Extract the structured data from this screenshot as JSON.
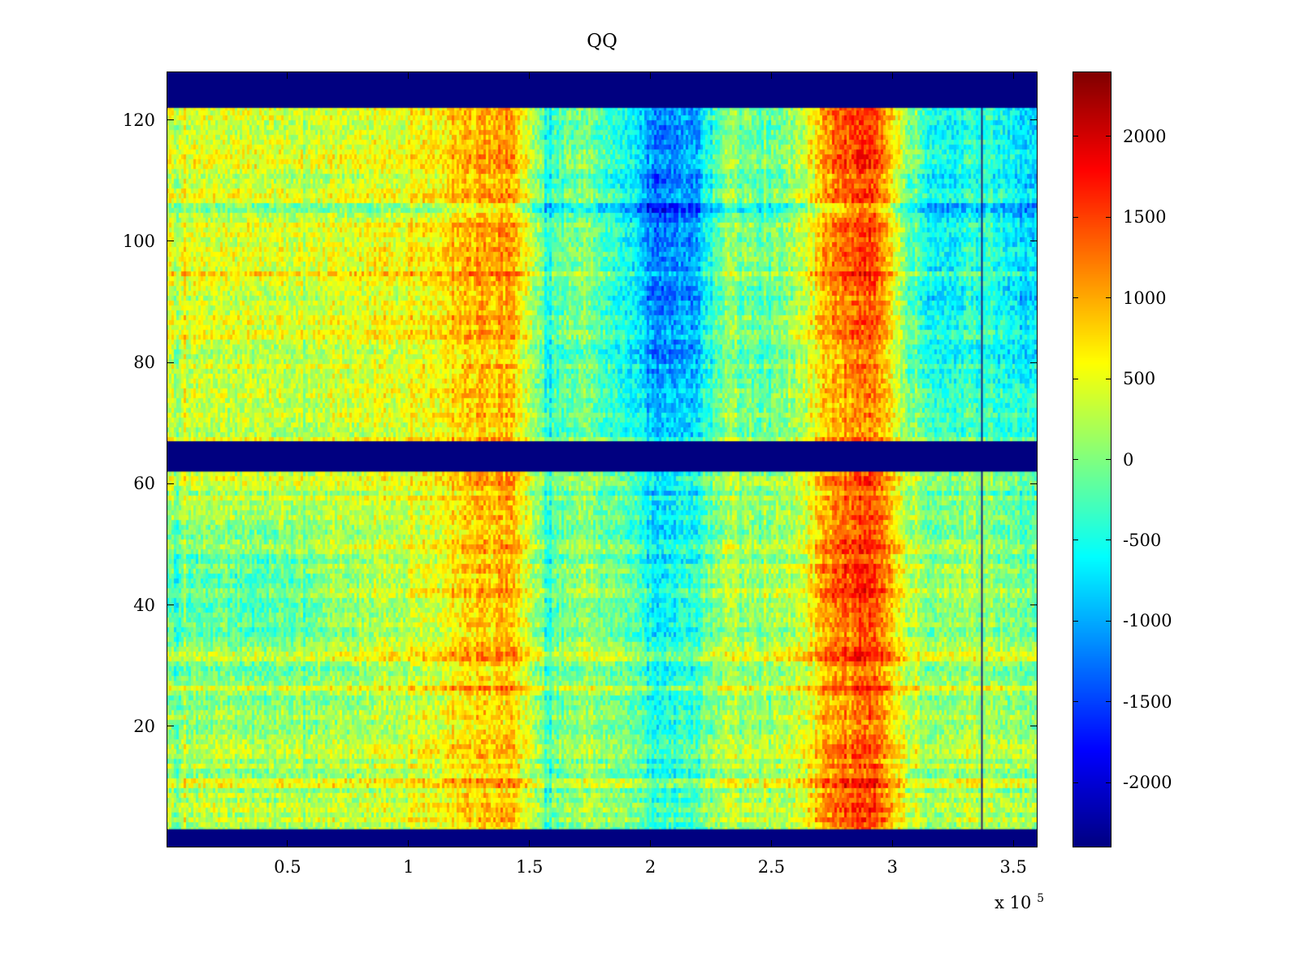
{
  "chart_data": {
    "type": "heatmap",
    "title": "QQ",
    "colormap": "jet",
    "x_range": [
      0,
      360000
    ],
    "y_range": [
      0,
      128
    ],
    "clim": [
      -2400,
      2400
    ],
    "x_ticks": [
      {
        "value": 50000,
        "label": "0.5"
      },
      {
        "value": 100000,
        "label": "1"
      },
      {
        "value": 150000,
        "label": "1.5"
      },
      {
        "value": 200000,
        "label": "2"
      },
      {
        "value": 250000,
        "label": "2.5"
      },
      {
        "value": 300000,
        "label": "3"
      },
      {
        "value": 350000,
        "label": "3.5"
      }
    ],
    "x_offset_label": {
      "base": "x 10",
      "exp": "5"
    },
    "y_ticks": [
      {
        "value": 20,
        "label": "20"
      },
      {
        "value": 40,
        "label": "40"
      },
      {
        "value": 60,
        "label": "60"
      },
      {
        "value": 80,
        "label": "80"
      },
      {
        "value": 100,
        "label": "100"
      },
      {
        "value": 120,
        "label": "120"
      }
    ],
    "colorbar_ticks": [
      {
        "value": 2000,
        "label": "2000"
      },
      {
        "value": 1500,
        "label": "1500"
      },
      {
        "value": 1000,
        "label": "1000"
      },
      {
        "value": 500,
        "label": "500"
      },
      {
        "value": 0,
        "label": "0"
      },
      {
        "value": -500,
        "label": "-500"
      },
      {
        "value": -1000,
        "label": "-1000"
      },
      {
        "value": -1500,
        "label": "-1500"
      },
      {
        "value": -2000,
        "label": "-2000"
      }
    ],
    "solid_bands_y": [
      [
        0,
        3
      ],
      [
        62,
        67
      ],
      [
        122,
        128
      ]
    ],
    "band_color": "#000080",
    "vlines": [
      {
        "x": 337000,
        "width": 2
      }
    ],
    "noise": {
      "cell_amp": 340,
      "row_amp": 200,
      "col_amp": 120,
      "seed": 42
    },
    "grid": {
      "x_centers": [
        7500,
        22500,
        37500,
        52500,
        67500,
        82500,
        97500,
        112500,
        127500,
        142500,
        157500,
        172500,
        187500,
        202500,
        217500,
        232500,
        247500,
        262500,
        277500,
        292500,
        307500,
        322500,
        337500,
        352500
      ],
      "y_centers_top_to_bottom": [
        119,
        106,
        93,
        80,
        70,
        56,
        44,
        32,
        20,
        8
      ],
      "values": [
        [
          450,
          400,
          450,
          400,
          450,
          500,
          550,
          600,
          1000,
          1100,
          -300,
          0,
          -400,
          -1100,
          -1000,
          100,
          -200,
          300,
          1500,
          1600,
          0,
          -600,
          -300,
          -700
        ],
        [
          400,
          350,
          400,
          350,
          400,
          450,
          500,
          550,
          950,
          1050,
          -300,
          0,
          -450,
          -1300,
          -1100,
          100,
          -250,
          250,
          1300,
          1500,
          -300,
          -700,
          -350,
          -800
        ],
        [
          350,
          300,
          350,
          300,
          400,
          450,
          500,
          550,
          900,
          1000,
          -350,
          -50,
          -500,
          -1300,
          -1200,
          50,
          -300,
          200,
          1200,
          1400,
          -400,
          -800,
          -400,
          -900
        ],
        [
          400,
          350,
          400,
          350,
          450,
          500,
          550,
          600,
          900,
          950,
          -300,
          0,
          -400,
          -1000,
          -900,
          100,
          -200,
          300,
          1100,
          1300,
          -200,
          -500,
          -300,
          -600
        ],
        [
          350,
          300,
          350,
          300,
          400,
          450,
          500,
          550,
          850,
          900,
          -250,
          0,
          -350,
          -800,
          -700,
          150,
          -150,
          300,
          1000,
          1200,
          0,
          -300,
          -200,
          -400
        ],
        [
          200,
          250,
          200,
          250,
          300,
          350,
          400,
          500,
          900,
          1000,
          -200,
          100,
          -100,
          -700,
          -500,
          200,
          0,
          350,
          1300,
          1500,
          100,
          0,
          100,
          -200
        ],
        [
          -300,
          -250,
          -300,
          -200,
          100,
          200,
          300,
          450,
          850,
          950,
          -200,
          100,
          -50,
          -600,
          -400,
          250,
          50,
          400,
          1500,
          1600,
          200,
          100,
          200,
          -100
        ],
        [
          -100,
          -50,
          -100,
          0,
          100,
          200,
          300,
          400,
          800,
          900,
          -150,
          100,
          0,
          -500,
          -350,
          200,
          100,
          350,
          1200,
          1400,
          150,
          100,
          150,
          0
        ],
        [
          100,
          150,
          100,
          150,
          200,
          250,
          350,
          450,
          750,
          850,
          -100,
          150,
          50,
          -400,
          -300,
          250,
          100,
          400,
          1100,
          1300,
          200,
          150,
          250,
          100
        ],
        [
          200,
          250,
          200,
          250,
          300,
          350,
          400,
          500,
          800,
          900,
          -100,
          150,
          100,
          -300,
          -250,
          300,
          150,
          450,
          1400,
          1500,
          250,
          200,
          300,
          150
        ]
      ]
    }
  }
}
